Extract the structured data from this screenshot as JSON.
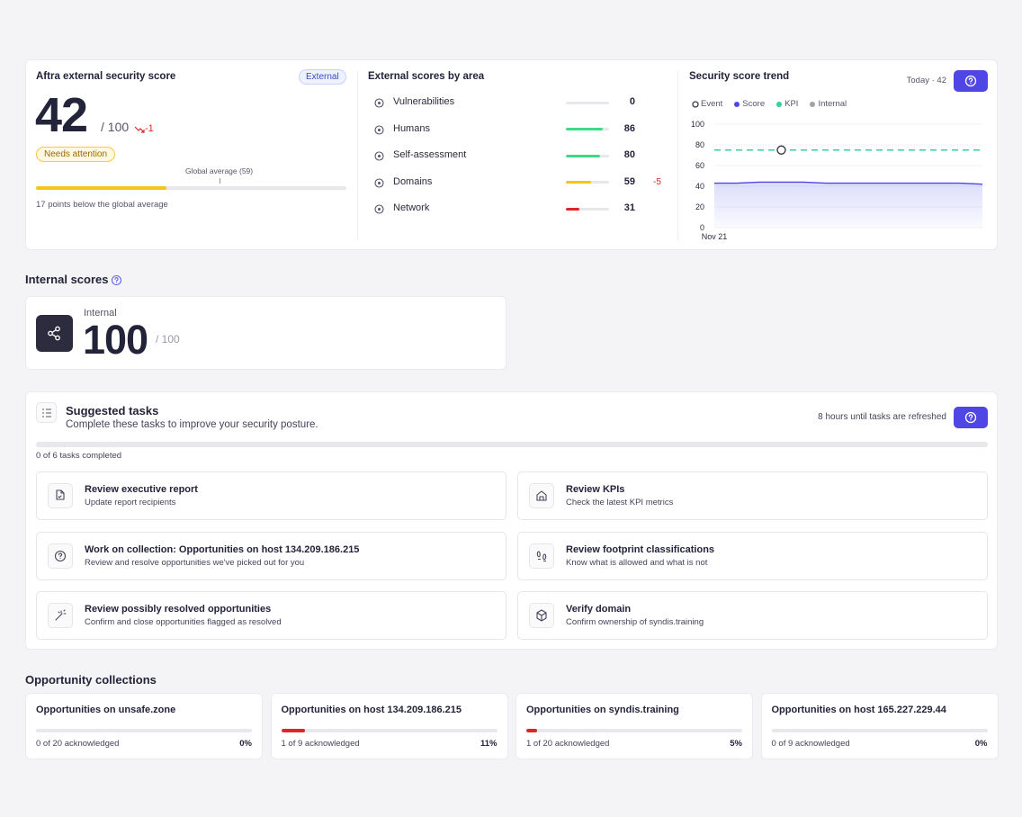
{
  "external_score": {
    "title": "Aftra external security score",
    "badge": "External",
    "score": 42,
    "max": 100,
    "max_label": "/ 100",
    "change": -1,
    "status": "Needs attention",
    "global_average": {
      "value": 59,
      "label": "Global average (59)"
    },
    "note": "17 points below the global average"
  },
  "areas": {
    "title": "External scores by area",
    "max": 100,
    "items": [
      {
        "name": "Vulnerabilities",
        "value": 0,
        "color": "#e5e5ea"
      },
      {
        "name": "Humans",
        "value": 86,
        "color": "#3ddc84"
      },
      {
        "name": "Self-assessment",
        "value": 80,
        "color": "#3ddc84"
      },
      {
        "name": "Domains",
        "value": 59,
        "change": -5,
        "color": "#f5c518"
      },
      {
        "name": "Network",
        "value": 31,
        "color": "#dc2626"
      }
    ]
  },
  "chart_data": {
    "type": "line",
    "title": "Security score trend",
    "subtitle": "Today · 42",
    "categories": [
      "Nov 21",
      null,
      null,
      null,
      null,
      null,
      null,
      null,
      null,
      null,
      null,
      null,
      null
    ],
    "series": [
      {
        "name": "Event",
        "color": "#3a3a4a",
        "marker": "open-circle",
        "values": [
          null,
          null,
          null,
          75,
          null,
          null,
          null,
          null,
          null,
          null,
          null,
          null,
          null
        ]
      },
      {
        "name": "Score",
        "color": "#4f46e5",
        "fill": true,
        "values": [
          43,
          43,
          44,
          44,
          44,
          43,
          43,
          43,
          43,
          43,
          43,
          43,
          42
        ]
      },
      {
        "name": "KPI",
        "color": "#34d399",
        "dashed": true,
        "values": [
          75,
          75,
          75,
          75,
          75,
          75,
          75,
          75,
          75,
          75,
          75,
          75,
          75
        ]
      },
      {
        "name": "Internal",
        "color": "#a1a1aa",
        "values": [
          null,
          null,
          null,
          null,
          null,
          null,
          null,
          null,
          null,
          null,
          null,
          null,
          null
        ]
      }
    ],
    "ylim": [
      0,
      100
    ],
    "yticks": [
      0,
      20,
      40,
      60,
      80,
      100
    ],
    "grid": true
  },
  "internal": {
    "heading": "Internal scores",
    "label": "Internal",
    "score": 100,
    "max_label": "/ 100"
  },
  "tasks": {
    "title": "Suggested tasks",
    "subtitle": "Complete these tasks to improve your security posture.",
    "refresh": "8 hours until tasks are refreshed",
    "completed": 0,
    "total": 6,
    "progress_label": "0 of 6 tasks completed",
    "items": [
      {
        "title": "Review executive report",
        "description": "Update report recipients"
      },
      {
        "title": "Review KPIs",
        "description": "Check the latest KPI metrics"
      },
      {
        "title": "Work on collection: Opportunities on host 134.209.186.215",
        "description": "Review and resolve opportunities we've picked out for you"
      },
      {
        "title": "Review footprint classifications",
        "description": "Know what is allowed and what is not"
      },
      {
        "title": "Review possibly resolved opportunities",
        "description": "Confirm and close opportunities flagged as resolved"
      },
      {
        "title": "Verify domain",
        "description": "Confirm ownership of syndis.training"
      }
    ]
  },
  "collections": {
    "heading": "Opportunity collections",
    "items": [
      {
        "name": "Opportunities on unsafe.zone",
        "acknowledged": "0 of 20 acknowledged",
        "percent": 0,
        "percent_label": "0%"
      },
      {
        "name": "Opportunities on host 134.209.186.215",
        "acknowledged": "1 of 9 acknowledged",
        "percent": 11,
        "percent_label": "11%"
      },
      {
        "name": "Opportunities on syndis.training",
        "acknowledged": "1 of 20 acknowledged",
        "percent": 5,
        "percent_label": "5%"
      },
      {
        "name": "Opportunities on host 165.227.229.44",
        "acknowledged": "0 of 9 acknowledged",
        "percent": 0,
        "percent_label": "0%"
      }
    ]
  }
}
